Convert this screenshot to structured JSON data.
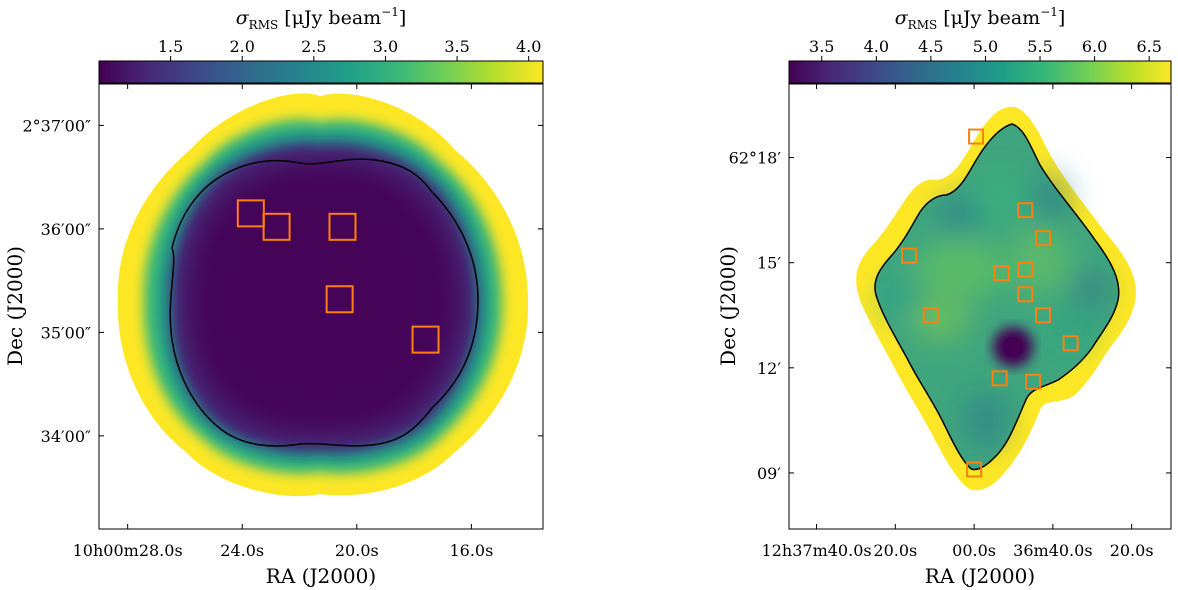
{
  "colormap": [
    "#440154",
    "#482878",
    "#3e4989",
    "#31688e",
    "#26828e",
    "#1f9e89",
    "#35b779",
    "#6ece58",
    "#b5de2b",
    "#fde725"
  ],
  "contour_color": "#000000",
  "marker_color": "#ff7f0e",
  "chart_data": [
    {
      "type": "heatmap",
      "title": "",
      "colorbar": {
        "label_sym": "σ",
        "label_sub": "RMS",
        "label_unit": "[μJy beam",
        "label_exp": "−1",
        "label_close": "]",
        "range": [
          1.0,
          4.1
        ],
        "ticks": [
          1.5,
          2.0,
          2.5,
          3.0,
          3.5,
          4.0
        ],
        "tick_labels": [
          "1.5",
          "2.0",
          "2.5",
          "3.0",
          "3.5",
          "4.0"
        ]
      },
      "xlabel": "RA (J2000)",
      "ylabel": "Dec (J2000)",
      "x_ticks": [
        {
          "label": "10h00m28.0s",
          "ra_sec": 28.0
        },
        {
          "label": "24.0s",
          "ra_sec": 24.0
        },
        {
          "label": "20.0s",
          "ra_sec": 20.0
        },
        {
          "label": "16.0s",
          "ra_sec": 16.0
        }
      ],
      "x_range_sec": [
        29.0,
        13.5
      ],
      "y_ticks": [
        {
          "label": "2°37′00″",
          "dec_arcmin": 37.0
        },
        {
          "label": "36′00″",
          "dec_arcmin": 36.0
        },
        {
          "label": "35′00″",
          "dec_arcmin": 35.0
        },
        {
          "label": "34′00″",
          "dec_arcmin": 34.0
        }
      ],
      "y_range_arcmin": [
        33.1,
        37.4
      ],
      "coverage_center": {
        "ra_sec": 21.23,
        "dec_arcmin": 35.28
      },
      "markers": [
        {
          "ra_sec": 23.7,
          "dec_arcmin": 36.15
        },
        {
          "ra_sec": 22.8,
          "dec_arcmin": 36.02
        },
        {
          "ra_sec": 20.5,
          "dec_arcmin": 36.02
        },
        {
          "ra_sec": 20.6,
          "dec_arcmin": 35.32
        },
        {
          "ra_sec": 17.6,
          "dec_arcmin": 34.93
        }
      ]
    },
    {
      "type": "heatmap",
      "title": "",
      "colorbar": {
        "label_sym": "σ",
        "label_sub": "RMS",
        "label_unit": "[μJy beam",
        "label_exp": "−1",
        "label_close": "]",
        "range": [
          3.2,
          6.7
        ],
        "ticks": [
          3.5,
          4.0,
          4.5,
          5.0,
          5.5,
          6.0,
          6.5
        ],
        "tick_labels": [
          "3.5",
          "4.0",
          "4.5",
          "5.0",
          "5.5",
          "6.0",
          "6.5"
        ]
      },
      "xlabel": "RA (J2000)",
      "ylabel": "Dec (J2000)",
      "x_ticks": [
        {
          "label": "12h37m40.0s",
          "ra_sec": 40.0
        },
        {
          "label": "20.0s",
          "ra_sec": 20.0
        },
        {
          "label": "00.0s",
          "ra_sec": 0.0
        },
        {
          "label": "36m40.0s",
          "ra_sec": -20.0
        },
        {
          "label": "20.0s",
          "ra_sec": -40.0
        }
      ],
      "x_range_sec": [
        47.0,
        -50.0
      ],
      "y_ticks": [
        {
          "label": "62°18′",
          "dec_arcmin": 18.0
        },
        {
          "label": "15′",
          "dec_arcmin": 15.0
        },
        {
          "label": "12′",
          "dec_arcmin": 12.0
        },
        {
          "label": "09′",
          "dec_arcmin": 9.0
        }
      ],
      "y_range_arcmin": [
        7.4,
        20.1
      ],
      "coverage_center": {
        "ra_sec": -1.5,
        "dec_arcmin": 14.2
      },
      "markers": [
        {
          "ra_sec": -0.5,
          "dec_arcmin": 18.6
        },
        {
          "ra_sec": 16.5,
          "dec_arcmin": 15.2
        },
        {
          "ra_sec": -13.0,
          "dec_arcmin": 16.5
        },
        {
          "ra_sec": -17.5,
          "dec_arcmin": 15.7
        },
        {
          "ra_sec": -7.0,
          "dec_arcmin": 14.7
        },
        {
          "ra_sec": -13.0,
          "dec_arcmin": 14.8
        },
        {
          "ra_sec": -13.0,
          "dec_arcmin": 14.1
        },
        {
          "ra_sec": 11.0,
          "dec_arcmin": 13.5
        },
        {
          "ra_sec": -17.5,
          "dec_arcmin": 13.5
        },
        {
          "ra_sec": -24.5,
          "dec_arcmin": 12.7
        },
        {
          "ra_sec": -6.5,
          "dec_arcmin": 11.7
        },
        {
          "ra_sec": -15.0,
          "dec_arcmin": 11.6
        },
        {
          "ra_sec": 0.0,
          "dec_arcmin": 9.1
        }
      ]
    }
  ]
}
